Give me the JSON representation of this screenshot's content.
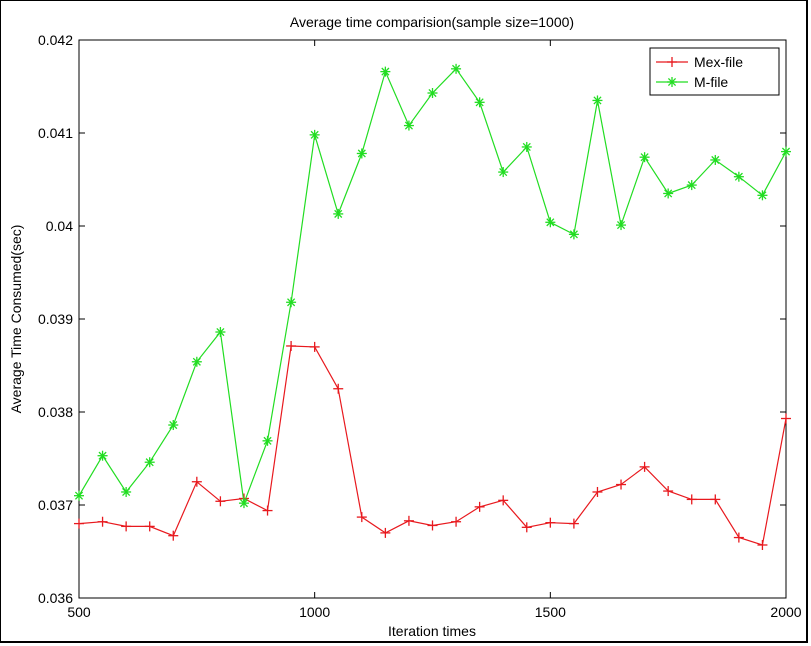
{
  "chart_data": {
    "type": "line",
    "title": "Average time comparision(sample size=1000)",
    "xlabel": "Iteration times",
    "ylabel": "Average Time Consumed(sec)",
    "xlim": [
      500,
      2000
    ],
    "ylim": [
      0.036,
      0.042
    ],
    "xticks": [
      500,
      1000,
      1500,
      2000
    ],
    "xtick_labels": [
      "500",
      "1000",
      "1500",
      "2000"
    ],
    "yticks": [
      0.036,
      0.037,
      0.038,
      0.039,
      0.04,
      0.041,
      0.042
    ],
    "ytick_labels": [
      "0.036",
      "0.037",
      "0.038",
      "0.039",
      "0.04",
      "0.041",
      "0.042"
    ],
    "grid": false,
    "legend_position": "top-right",
    "x": [
      500,
      550,
      600,
      650,
      700,
      750,
      800,
      850,
      900,
      950,
      1000,
      1050,
      1100,
      1150,
      1200,
      1250,
      1300,
      1350,
      1400,
      1450,
      1500,
      1550,
      1600,
      1650,
      1700,
      1750,
      1800,
      1850,
      1900,
      1950,
      2000
    ],
    "series": [
      {
        "name": "Mex-file",
        "color": "#e8191e",
        "marker": "plus",
        "values": [
          0.0368,
          0.03682,
          0.03677,
          0.03677,
          0.03667,
          0.03725,
          0.03704,
          0.03707,
          0.03694,
          0.03871,
          0.0387,
          0.03825,
          0.03687,
          0.0367,
          0.03683,
          0.03678,
          0.03682,
          0.03698,
          0.03705,
          0.03676,
          0.03681,
          0.0368,
          0.03714,
          0.03722,
          0.03741,
          0.03715,
          0.03706,
          0.03706,
          0.03665,
          0.03657,
          0.03793
        ]
      },
      {
        "name": "M-file",
        "color": "#22dd22",
        "marker": "asterisk",
        "values": [
          0.0371,
          0.03753,
          0.03714,
          0.03746,
          0.03786,
          0.03854,
          0.03886,
          0.03702,
          0.03769,
          0.03918,
          0.04098,
          0.04013,
          0.04078,
          0.04166,
          0.04108,
          0.04143,
          0.04169,
          0.04133,
          0.04058,
          0.04085,
          0.04004,
          0.03991,
          0.04135,
          0.04001,
          0.04074,
          0.04035,
          0.04044,
          0.04071,
          0.04053,
          0.04033,
          0.0408
        ]
      }
    ]
  }
}
